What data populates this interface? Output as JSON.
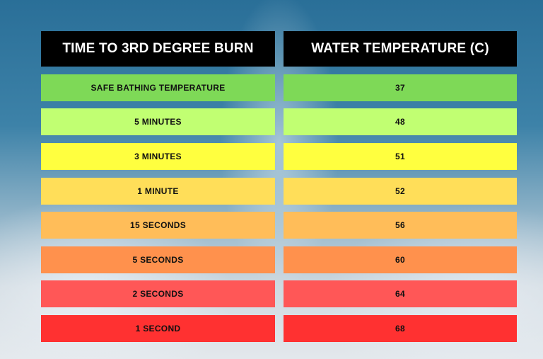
{
  "headers": {
    "left": "TIME TO 3RD DEGREE BURN",
    "right": "WATER TEMPERATURE (C)"
  },
  "rows": [
    {
      "time": "SAFE BATHING TEMPERATURE",
      "temp": "37",
      "color": "#7ed957"
    },
    {
      "time": "5 MINUTES",
      "temp": "48",
      "color": "#c1ff72"
    },
    {
      "time": "3 MINUTES",
      "temp": "51",
      "color": "#ffff3f"
    },
    {
      "time": "1 MINUTE",
      "temp": "52",
      "color": "#ffde59"
    },
    {
      "time": "15 SECONDS",
      "temp": "56",
      "color": "#ffbd59"
    },
    {
      "time": "5 SECONDS",
      "temp": "60",
      "color": "#ff914d"
    },
    {
      "time": "2 SECONDS",
      "temp": "64",
      "color": "#ff5757"
    },
    {
      "time": "1 SECOND",
      "temp": "68",
      "color": "#ff3131"
    }
  ]
}
